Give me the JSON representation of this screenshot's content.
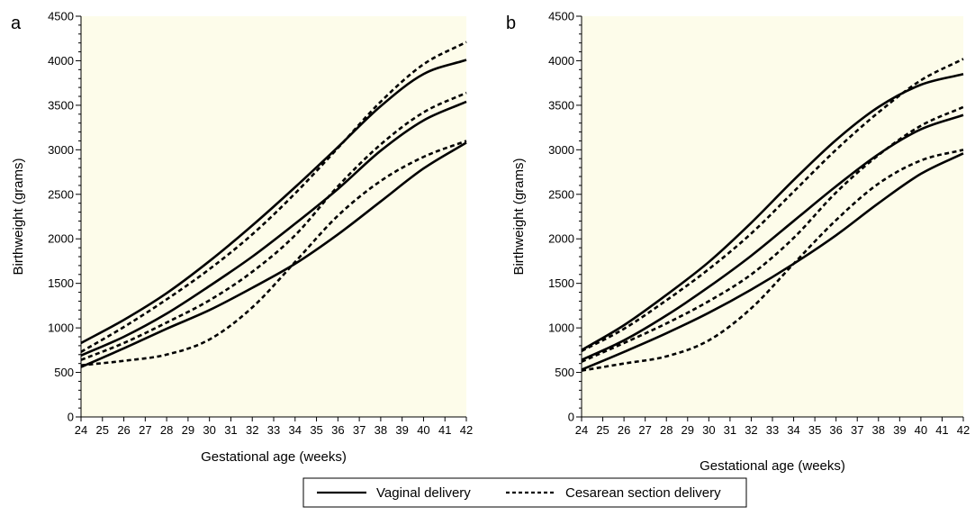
{
  "legend": {
    "items": [
      {
        "label": "Vaginal delivery",
        "style": "solid"
      },
      {
        "label": "Cesarean section delivery",
        "style": "dashed"
      }
    ],
    "placement": "bottom-center"
  },
  "colors": {
    "plot_background": "#fdfcea",
    "line": "#000000"
  },
  "chart_data": [
    {
      "type": "line",
      "panel_label": "a",
      "xlabel": "Gestational age (weeks)",
      "ylabel": "Birthweight (grams)",
      "xlim": [
        24,
        42
      ],
      "ylim": [
        0,
        4500
      ],
      "xticks": [
        24,
        25,
        26,
        27,
        28,
        29,
        30,
        31,
        32,
        33,
        34,
        35,
        36,
        37,
        38,
        39,
        40,
        41,
        42
      ],
      "yticks": [
        0,
        500,
        1000,
        1500,
        2000,
        2500,
        3000,
        3500,
        4000,
        4500
      ],
      "grid": false,
      "x": [
        24,
        26,
        28,
        30,
        32,
        34,
        36,
        38,
        40,
        42
      ],
      "series": [
        {
          "name": "Vaginal delivery",
          "style": "solid",
          "values": [
            830,
            1090,
            1390,
            1750,
            2150,
            2580,
            3030,
            3490,
            3850,
            4010
          ]
        },
        {
          "name": "Vaginal delivery",
          "style": "solid",
          "values": [
            690,
            900,
            1160,
            1470,
            1800,
            2170,
            2560,
            2990,
            3330,
            3540
          ]
        },
        {
          "name": "Vaginal delivery",
          "style": "solid",
          "values": [
            560,
            770,
            990,
            1200,
            1450,
            1720,
            2050,
            2420,
            2790,
            3080
          ]
        },
        {
          "name": "Cesarean section delivery",
          "style": "dashed",
          "values": [
            730,
            1010,
            1320,
            1660,
            2050,
            2510,
            3020,
            3540,
            3960,
            4210
          ]
        },
        {
          "name": "Cesarean section delivery",
          "style": "dashed",
          "values": [
            640,
            830,
            1060,
            1310,
            1630,
            2040,
            2590,
            3060,
            3420,
            3640
          ]
        },
        {
          "name": "Cesarean section delivery",
          "style": "dashed",
          "values": [
            580,
            630,
            700,
            870,
            1230,
            1740,
            2260,
            2650,
            2920,
            3100
          ]
        }
      ]
    },
    {
      "type": "line",
      "panel_label": "b",
      "xlabel": "Gestational age (weeks)",
      "ylabel": "Birthweight (grams)",
      "xlim": [
        24,
        42
      ],
      "ylim": [
        0,
        4500
      ],
      "xticks": [
        24,
        25,
        26,
        27,
        28,
        29,
        30,
        31,
        32,
        33,
        34,
        35,
        36,
        37,
        38,
        39,
        40,
        41,
        42
      ],
      "yticks": [
        0,
        500,
        1000,
        1500,
        2000,
        2500,
        3000,
        3500,
        4000,
        4500
      ],
      "grid": false,
      "x": [
        24,
        26,
        28,
        30,
        32,
        34,
        36,
        38,
        40,
        42
      ],
      "series": [
        {
          "name": "Vaginal delivery",
          "style": "solid",
          "values": [
            750,
            1030,
            1370,
            1740,
            2180,
            2660,
            3110,
            3480,
            3730,
            3850
          ]
        },
        {
          "name": "Vaginal delivery",
          "style": "solid",
          "values": [
            640,
            860,
            1140,
            1460,
            1810,
            2200,
            2590,
            2950,
            3230,
            3390
          ]
        },
        {
          "name": "Vaginal delivery",
          "style": "solid",
          "values": [
            530,
            730,
            940,
            1170,
            1430,
            1720,
            2040,
            2400,
            2730,
            2960
          ]
        },
        {
          "name": "Cesarean section delivery",
          "style": "dashed",
          "values": [
            740,
            990,
            1310,
            1660,
            2060,
            2530,
            3000,
            3420,
            3780,
            4020
          ]
        },
        {
          "name": "Cesarean section delivery",
          "style": "dashed",
          "values": [
            620,
            830,
            1050,
            1300,
            1600,
            2010,
            2520,
            2940,
            3270,
            3480
          ]
        },
        {
          "name": "Cesarean section delivery",
          "style": "dashed",
          "values": [
            520,
            600,
            680,
            860,
            1220,
            1720,
            2210,
            2620,
            2880,
            3000
          ]
        }
      ]
    }
  ]
}
